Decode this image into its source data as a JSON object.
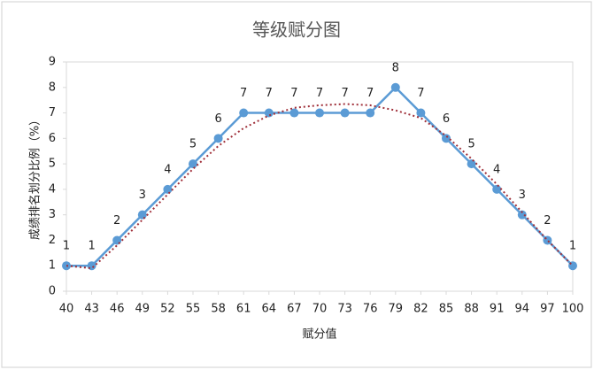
{
  "chart_data": {
    "type": "line",
    "title": "等级赋分图",
    "x_label": "赋分值",
    "y_label": "成绩排名划分比例（%）",
    "x": [
      40,
      43,
      46,
      49,
      52,
      55,
      58,
      61,
      64,
      67,
      70,
      73,
      76,
      79,
      82,
      85,
      88,
      91,
      94,
      97,
      100
    ],
    "series": [
      {
        "color": "#5b9bd5",
        "style": "solid",
        "markers": true,
        "data_labels": true,
        "values": [
          1,
          1,
          2,
          3,
          4,
          5,
          6,
          7,
          7,
          7,
          7,
          7,
          7,
          8,
          7,
          6,
          5,
          4,
          3,
          2,
          1
        ]
      },
      {
        "color": "#a0303a",
        "style": "dotted",
        "markers": false,
        "data_labels": false,
        "values": [
          1,
          0.9,
          1.8,
          2.8,
          3.8,
          4.8,
          5.7,
          6.4,
          6.9,
          7.2,
          7.3,
          7.35,
          7.3,
          7.1,
          6.8,
          6.1,
          5.2,
          4.2,
          3.1,
          2,
          1
        ]
      }
    ],
    "xlim": [
      40,
      100
    ],
    "xticks": [
      40,
      43,
      46,
      49,
      52,
      55,
      58,
      61,
      64,
      67,
      70,
      73,
      76,
      79,
      82,
      85,
      88,
      91,
      94,
      97,
      100
    ],
    "ylim": [
      0,
      9
    ],
    "yticks": [
      0,
      1,
      2,
      3,
      4,
      5,
      6,
      7,
      8,
      9
    ],
    "grid": false
  }
}
